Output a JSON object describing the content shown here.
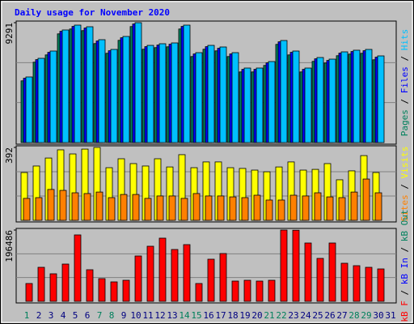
{
  "chart_data": [
    {
      "type": "bar",
      "title": "Daily usage for November 2020",
      "ylim": [
        0,
        9291
      ],
      "yticks": [
        9291
      ],
      "grid": true,
      "legend_separator": " / ",
      "draw_reverse": false,
      "series": [
        {
          "name": "Pages",
          "color": "#00805c",
          "values": [
            4785,
            6229,
            6794,
            8426,
            8803,
            8677,
            7673,
            6919,
            7924,
            8991,
            7233,
            7359,
            7422,
            8803,
            6668,
            7233,
            7108,
            6668,
            5475,
            5475,
            5978,
            7610,
            6794,
            5475,
            6292,
            6166,
            6731,
            6857,
            6919,
            6417,
            0
          ]
        },
        {
          "name": "Files",
          "color": "#0000ff",
          "values": [
            4985,
            6429,
            6994,
            8626,
            9003,
            8877,
            7873,
            7119,
            8124,
            9191,
            7433,
            7559,
            7622,
            9003,
            6868,
            7433,
            7308,
            6868,
            5675,
            5675,
            6178,
            7810,
            6994,
            5675,
            6492,
            6366,
            6931,
            7057,
            7119,
            6617,
            0
          ]
        },
        {
          "name": "Hits",
          "color": "#00c0ff",
          "values": [
            5085,
            6529,
            7094,
            8726,
            9103,
            8977,
            7973,
            7219,
            8224,
            9291,
            7533,
            7659,
            7722,
            9103,
            6968,
            7533,
            7408,
            6968,
            5775,
            5775,
            6278,
            7910,
            7094,
            5775,
            6592,
            6466,
            7031,
            7157,
            7219,
            6717,
            0
          ]
        }
      ]
    },
    {
      "type": "bar",
      "ylim": [
        0,
        392
      ],
      "yticks": [
        392
      ],
      "grid": true,
      "legend_separator": " / ",
      "draw_reverse": true,
      "series": [
        {
          "name": "Sites",
          "color": "#ff8000",
          "values": [
            118,
            122,
            166,
            161,
            148,
            144,
            152,
            122,
            139,
            139,
            118,
            131,
            131,
            118,
            144,
            131,
            131,
            126,
            122,
            135,
            109,
            109,
            135,
            131,
            148,
            126,
            122,
            152,
            222,
            148,
            0
          ]
        },
        {
          "name": "Visits",
          "color": "#ffff00",
          "values": [
            257,
            292,
            335,
            379,
            357,
            383,
            392,
            283,
            331,
            305,
            292,
            331,
            287,
            353,
            283,
            314,
            314,
            283,
            279,
            270,
            261,
            287,
            314,
            270,
            274,
            305,
            218,
            266,
            348,
            257,
            0
          ]
        }
      ]
    },
    {
      "type": "bar",
      "ylim": [
        0,
        196486
      ],
      "yticks": [
        196486
      ],
      "grid": true,
      "legend_separator": " / ",
      "draw_reverse": true,
      "categories": [
        "1",
        "2",
        "3",
        "4",
        "5",
        "6",
        "7",
        "8",
        "9",
        "10",
        "11",
        "12",
        "13",
        "14",
        "15",
        "16",
        "17",
        "18",
        "19",
        "20",
        "21",
        "22",
        "23",
        "24",
        "25",
        "26",
        "27",
        "28",
        "29",
        "30",
        "31"
      ],
      "weekend": [
        true,
        false,
        false,
        false,
        false,
        false,
        true,
        true,
        false,
        false,
        false,
        false,
        false,
        true,
        true,
        false,
        false,
        false,
        false,
        false,
        true,
        true,
        false,
        false,
        false,
        false,
        false,
        true,
        true,
        false,
        false
      ],
      "weekend_color": "#00805c",
      "weekday_color": "#000080",
      "series": [
        {
          "name": "kB F",
          "color": "#ff0000",
          "values": [
            49122,
            93777,
            75913,
            102708,
            183089,
            87078,
            62518,
            53587,
            58053,
            125037,
            151829,
            174157,
            142898,
            156296,
            49122,
            116106,
            131735,
            55820,
            58053,
            55820,
            58053,
            196486,
            196000,
            160762,
            118339,
            160762,
            104941,
            98243,
            93777,
            89312,
            0
          ]
        },
        {
          "name": "kB In",
          "color": "#0000ff",
          "values": [
            0,
            0,
            0,
            0,
            0,
            0,
            0,
            0,
            0,
            0,
            0,
            0,
            0,
            0,
            0,
            0,
            0,
            0,
            0,
            0,
            0,
            0,
            0,
            0,
            0,
            0,
            0,
            0,
            0,
            0,
            0
          ]
        },
        {
          "name": "kB Out",
          "color": "#00805c",
          "values": [
            0,
            0,
            0,
            0,
            0,
            0,
            0,
            0,
            0,
            0,
            0,
            0,
            0,
            0,
            0,
            0,
            0,
            0,
            0,
            0,
            0,
            0,
            0,
            0,
            0,
            0,
            0,
            0,
            0,
            0,
            0
          ]
        }
      ]
    }
  ]
}
